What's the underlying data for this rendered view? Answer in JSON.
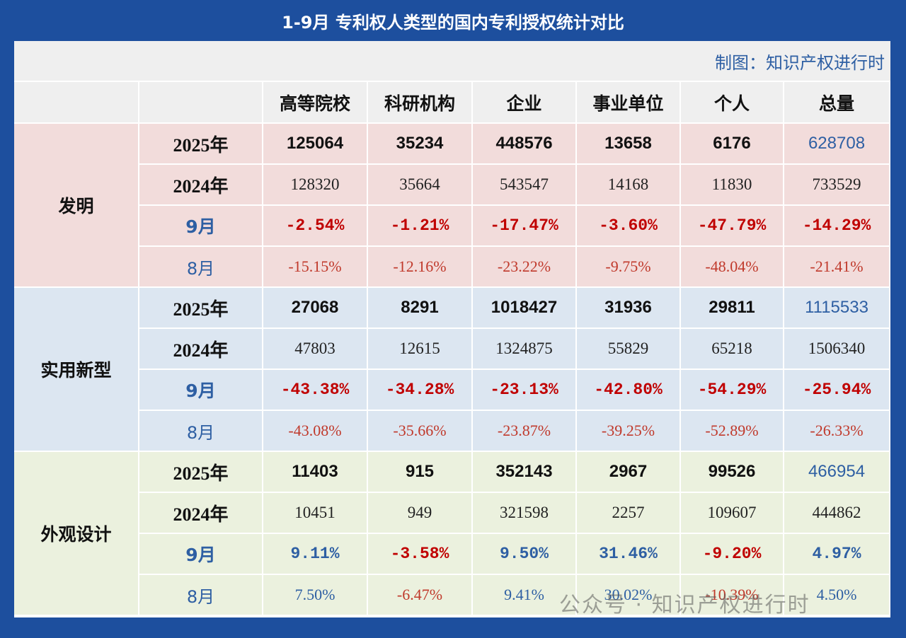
{
  "title": "1-9月 专利权人类型的国内专利授权统计对比",
  "credit": "制图：知识产权进行时",
  "header": [
    "高等院校",
    "科研机构",
    "企业",
    "事业单位",
    "个人",
    "总量"
  ],
  "groups": [
    {
      "name": "发明",
      "rows": [
        {
          "label": "2025年",
          "cells": [
            "125064",
            "35234",
            "448576",
            "13658",
            "6176",
            "628708"
          ]
        },
        {
          "label": "2024年",
          "cells": [
            "128320",
            "35664",
            "543547",
            "14168",
            "11830",
            "733529"
          ]
        },
        {
          "label": "9月",
          "cells": [
            "-2.54%",
            "-1.21%",
            "-17.47%",
            "-3.60%",
            "-47.79%",
            "-14.29%"
          ]
        },
        {
          "label": "8月",
          "cells": [
            "-15.15%",
            "-12.16%",
            "-23.22%",
            "-9.75%",
            "-48.04%",
            "-21.41%"
          ]
        }
      ]
    },
    {
      "name": "实用新型",
      "rows": [
        {
          "label": "2025年",
          "cells": [
            "27068",
            "8291",
            "1018427",
            "31936",
            "29811",
            "1115533"
          ]
        },
        {
          "label": "2024年",
          "cells": [
            "47803",
            "12615",
            "1324875",
            "55829",
            "65218",
            "1506340"
          ]
        },
        {
          "label": "9月",
          "cells": [
            "-43.38%",
            "-34.28%",
            "-23.13%",
            "-42.80%",
            "-54.29%",
            "-25.94%"
          ]
        },
        {
          "label": "8月",
          "cells": [
            "-43.08%",
            "-35.66%",
            "-23.87%",
            "-39.25%",
            "-52.89%",
            "-26.33%"
          ]
        }
      ]
    },
    {
      "name": "外观设计",
      "rows": [
        {
          "label": "2025年",
          "cells": [
            "11403",
            "915",
            "352143",
            "2967",
            "99526",
            "466954"
          ]
        },
        {
          "label": "2024年",
          "cells": [
            "10451",
            "949",
            "321598",
            "2257",
            "109607",
            "444862"
          ]
        },
        {
          "label": "9月",
          "cells": [
            "9.11%",
            "-3.58%",
            "9.50%",
            "31.46%",
            "-9.20%",
            "4.97%"
          ]
        },
        {
          "label": "8月",
          "cells": [
            "7.50%",
            "-6.47%",
            "9.41%",
            "30.02%",
            "-10.39%",
            "4.50%"
          ]
        }
      ]
    }
  ],
  "watermark": "公众号 · 知识产权进行时"
}
